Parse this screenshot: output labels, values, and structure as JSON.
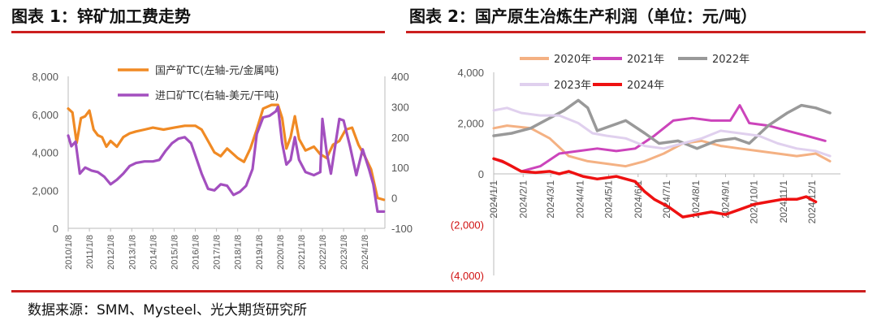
{
  "titles": {
    "chart1": "图表 1：锌矿加工费走势",
    "chart2": "图表 2：国产原生冶炼生产利润（单位：元/吨）"
  },
  "source": "数据来源：SMM、Mysteel、光大期货研究所",
  "colors": {
    "rule": "#cc1f1f",
    "domestic_tc": "#f08a24",
    "import_tc": "#a34fbf",
    "y2020": "#f4b183",
    "y2021": "#cc44bb",
    "y2022": "#999999",
    "y2023": "#e0d0ee",
    "y2024": "#ee1111"
  },
  "chart_data": [
    {
      "type": "line",
      "title": "图表 1：锌矿加工费走势",
      "x_ticks": [
        "2010/1/8",
        "2011/1/8",
        "2012/1/8",
        "2013/1/8",
        "2014/1/8",
        "2015/1/8",
        "2016/1/8",
        "2017/1/8",
        "2018/1/8",
        "2019/1/8",
        "2020/1/8",
        "2021/1/8",
        "2022/1/8",
        "2023/1/8",
        "2024/1/8"
      ],
      "y_left_ticks": [
        "8,000",
        "6,000",
        "4,000",
        "2,000",
        "0"
      ],
      "y_left_range": [
        0,
        8000
      ],
      "y_right_ticks": [
        "400",
        "300",
        "200",
        "100",
        "0",
        "-100"
      ],
      "y_right_range": [
        -100,
        400
      ],
      "legend_position": "top-right",
      "series": [
        {
          "name": "国产矿TC(左轴-元/金属吨)",
          "axis": "left",
          "points": [
            [
              2010.0,
              6300
            ],
            [
              2010.2,
              6100
            ],
            [
              2010.4,
              4500
            ],
            [
              2010.6,
              5800
            ],
            [
              2010.8,
              5900
            ],
            [
              2011.0,
              6200
            ],
            [
              2011.2,
              5200
            ],
            [
              2011.4,
              4900
            ],
            [
              2011.6,
              4800
            ],
            [
              2011.8,
              4300
            ],
            [
              2012.0,
              4600
            ],
            [
              2012.3,
              4300
            ],
            [
              2012.6,
              4800
            ],
            [
              2012.9,
              5000
            ],
            [
              2013.2,
              5100
            ],
            [
              2013.6,
              5200
            ],
            [
              2014.0,
              5300
            ],
            [
              2014.5,
              5200
            ],
            [
              2015.0,
              5300
            ],
            [
              2015.5,
              5400
            ],
            [
              2016.0,
              5400
            ],
            [
              2016.3,
              5200
            ],
            [
              2016.6,
              4600
            ],
            [
              2016.9,
              4000
            ],
            [
              2017.2,
              3800
            ],
            [
              2017.5,
              4200
            ],
            [
              2017.8,
              3900
            ],
            [
              2018.0,
              3700
            ],
            [
              2018.3,
              3500
            ],
            [
              2018.6,
              4200
            ],
            [
              2018.9,
              5200
            ],
            [
              2019.2,
              6300
            ],
            [
              2019.6,
              6500
            ],
            [
              2019.9,
              6500
            ],
            [
              2020.1,
              5800
            ],
            [
              2020.3,
              4200
            ],
            [
              2020.5,
              4800
            ],
            [
              2020.7,
              5900
            ],
            [
              2020.9,
              4700
            ],
            [
              2021.2,
              4100
            ],
            [
              2021.6,
              4300
            ],
            [
              2021.9,
              3900
            ],
            [
              2022.2,
              3700
            ],
            [
              2022.5,
              4400
            ],
            [
              2022.8,
              4600
            ],
            [
              2023.1,
              5200
            ],
            [
              2023.4,
              5300
            ],
            [
              2023.7,
              4400
            ],
            [
              2024.0,
              3800
            ],
            [
              2024.3,
              3100
            ],
            [
              2024.6,
              1600
            ],
            [
              2024.9,
              1500
            ]
          ]
        },
        {
          "name": "进口矿TC(右轴-美元/干吨)",
          "axis": "right",
          "points": [
            [
              2010.0,
              205
            ],
            [
              2010.15,
              170
            ],
            [
              2010.35,
              185
            ],
            [
              2010.55,
              80
            ],
            [
              2010.8,
              100
            ],
            [
              2011.1,
              90
            ],
            [
              2011.4,
              85
            ],
            [
              2011.7,
              70
            ],
            [
              2012.0,
              45
            ],
            [
              2012.3,
              60
            ],
            [
              2012.6,
              80
            ],
            [
              2012.9,
              105
            ],
            [
              2013.2,
              115
            ],
            [
              2013.6,
              120
            ],
            [
              2014.0,
              120
            ],
            [
              2014.3,
              125
            ],
            [
              2014.6,
              155
            ],
            [
              2014.9,
              180
            ],
            [
              2015.2,
              195
            ],
            [
              2015.5,
              200
            ],
            [
              2015.8,
              180
            ],
            [
              2016.0,
              140
            ],
            [
              2016.3,
              80
            ],
            [
              2016.6,
              30
            ],
            [
              2016.9,
              25
            ],
            [
              2017.2,
              45
            ],
            [
              2017.5,
              40
            ],
            [
              2017.8,
              10
            ],
            [
              2018.1,
              20
            ],
            [
              2018.4,
              40
            ],
            [
              2018.7,
              95
            ],
            [
              2018.9,
              210
            ],
            [
              2019.2,
              265
            ],
            [
              2019.5,
              270
            ],
            [
              2019.8,
              285
            ],
            [
              2019.9,
              300
            ],
            [
              2020.1,
              180
            ],
            [
              2020.3,
              110
            ],
            [
              2020.5,
              125
            ],
            [
              2020.7,
              200
            ],
            [
              2020.9,
              125
            ],
            [
              2021.2,
              85
            ],
            [
              2021.6,
              75
            ],
            [
              2021.9,
              85
            ],
            [
              2022.0,
              260
            ],
            [
              2022.2,
              150
            ],
            [
              2022.4,
              80
            ],
            [
              2022.6,
              170
            ],
            [
              2022.8,
              260
            ],
            [
              2023.0,
              255
            ],
            [
              2023.3,
              170
            ],
            [
              2023.6,
              75
            ],
            [
              2023.9,
              160
            ],
            [
              2024.2,
              95
            ],
            [
              2024.4,
              45
            ],
            [
              2024.6,
              -45
            ],
            [
              2024.9,
              -45
            ]
          ]
        }
      ]
    },
    {
      "type": "line",
      "title": "图表 2：国产原生冶炼生产利润（单位：元/吨）",
      "x_ticks": [
        "2024/1/1",
        "2024/2/1",
        "2024/3/1",
        "2024/4/1",
        "2024/5/1",
        "2024/6/1",
        "2024/7/1",
        "2024/8/1",
        "2024/9/1",
        "2024/10/1",
        "2024/11/1",
        "2024/12/1"
      ],
      "y_ticks": [
        "4,000",
        "2,000",
        "0",
        "(2,000)",
        "(4,000)"
      ],
      "y_range": [
        -4000,
        4000
      ],
      "legend_position": "top",
      "series": [
        {
          "name": "2020年",
          "points": [
            [
              1,
              1800
            ],
            [
              15,
              1900
            ],
            [
              40,
              1800
            ],
            [
              60,
              1400
            ],
            [
              80,
              700
            ],
            [
              100,
              500
            ],
            [
              120,
              400
            ],
            [
              140,
              300
            ],
            [
              160,
              500
            ],
            [
              180,
              800
            ],
            [
              200,
              1200
            ],
            [
              220,
              1300
            ],
            [
              240,
              1100
            ],
            [
              260,
              1000
            ],
            [
              280,
              900
            ],
            [
              300,
              800
            ],
            [
              320,
              700
            ],
            [
              340,
              800
            ],
            [
              355,
              500
            ]
          ]
        },
        {
          "name": "2021年",
          "points": [
            [
              1,
              600
            ],
            [
              15,
              400
            ],
            [
              30,
              100
            ],
            [
              50,
              300
            ],
            [
              70,
              800
            ],
            [
              90,
              900
            ],
            [
              110,
              1000
            ],
            [
              130,
              900
            ],
            [
              150,
              1000
            ],
            [
              170,
              1500
            ],
            [
              190,
              2100
            ],
            [
              210,
              2200
            ],
            [
              230,
              2100
            ],
            [
              250,
              2100
            ],
            [
              260,
              2700
            ],
            [
              270,
              2000
            ],
            [
              290,
              1900
            ],
            [
              310,
              1700
            ],
            [
              330,
              1500
            ],
            [
              350,
              1300
            ]
          ]
        },
        {
          "name": "2022年",
          "points": [
            [
              1,
              1500
            ],
            [
              20,
              1600
            ],
            [
              40,
              1800
            ],
            [
              60,
              2200
            ],
            [
              75,
              2500
            ],
            [
              90,
              2900
            ],
            [
              100,
              2600
            ],
            [
              110,
              1700
            ],
            [
              125,
              1900
            ],
            [
              140,
              2100
            ],
            [
              160,
              1600
            ],
            [
              175,
              1200
            ],
            [
              195,
              1300
            ],
            [
              215,
              1000
            ],
            [
              235,
              1300
            ],
            [
              255,
              1400
            ],
            [
              270,
              1200
            ],
            [
              290,
              1900
            ],
            [
              310,
              2400
            ],
            [
              325,
              2700
            ],
            [
              340,
              2600
            ],
            [
              355,
              2400
            ]
          ]
        },
        {
          "name": "2023年",
          "points": [
            [
              1,
              2500
            ],
            [
              15,
              2600
            ],
            [
              30,
              2400
            ],
            [
              50,
              2300
            ],
            [
              70,
              2300
            ],
            [
              90,
              2000
            ],
            [
              105,
              1600
            ],
            [
              120,
              1500
            ],
            [
              140,
              1400
            ],
            [
              160,
              1100
            ],
            [
              180,
              1000
            ],
            [
              200,
              1200
            ],
            [
              220,
              1400
            ],
            [
              240,
              1700
            ],
            [
              260,
              1600
            ],
            [
              280,
              1500
            ],
            [
              300,
              1200
            ],
            [
              320,
              1000
            ],
            [
              340,
              900
            ],
            [
              355,
              700
            ]
          ]
        },
        {
          "name": "2024年",
          "points": [
            [
              1,
              600
            ],
            [
              10,
              500
            ],
            [
              20,
              300
            ],
            [
              30,
              100
            ],
            [
              45,
              50
            ],
            [
              60,
              100
            ],
            [
              70,
              0
            ],
            [
              80,
              100
            ],
            [
              95,
              -100
            ],
            [
              110,
              -200
            ],
            [
              130,
              -100
            ],
            [
              150,
              -300
            ],
            [
              160,
              -700
            ],
            [
              170,
              -1000
            ],
            [
              185,
              -1300
            ],
            [
              200,
              -1700
            ],
            [
              215,
              -1600
            ],
            [
              230,
              -1500
            ],
            [
              245,
              -1600
            ],
            [
              260,
              -1400
            ],
            [
              275,
              -1200
            ],
            [
              290,
              -1100
            ],
            [
              305,
              -1000
            ],
            [
              320,
              -1000
            ],
            [
              330,
              -900
            ],
            [
              340,
              -1100
            ]
          ]
        }
      ]
    }
  ]
}
